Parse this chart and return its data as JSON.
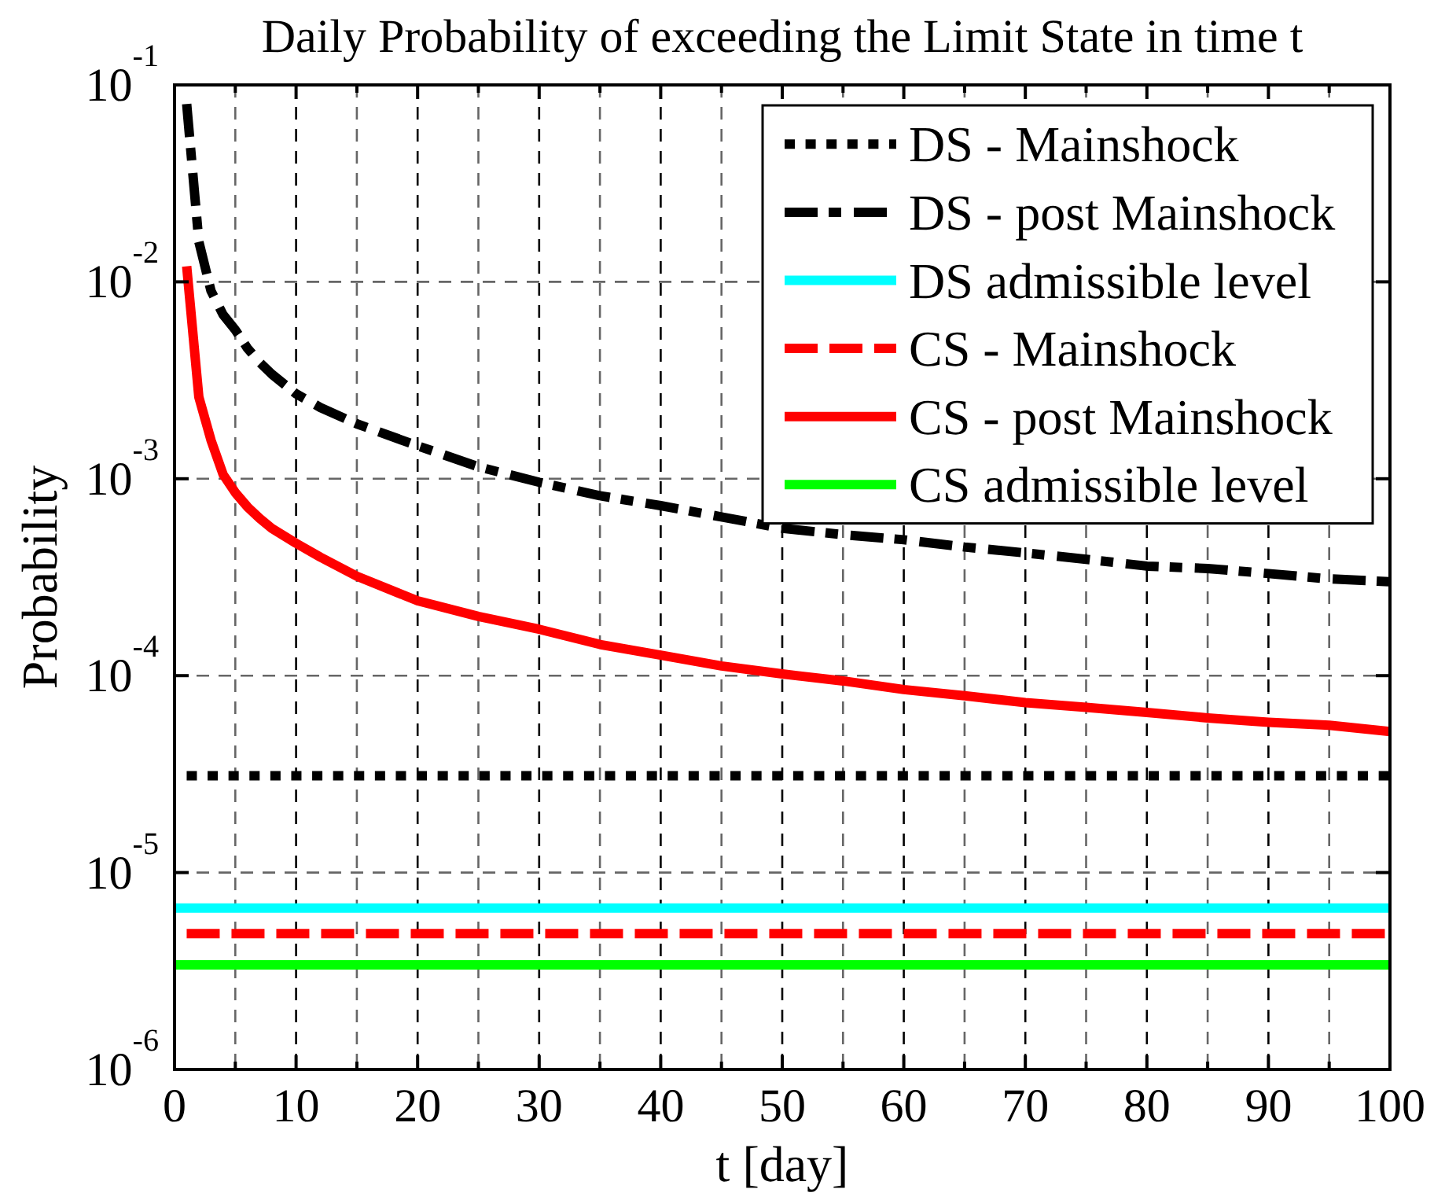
{
  "chart_data": {
    "type": "line",
    "title": "Daily Probability of exceeding the Limit State in time t",
    "xlabel": "t [day]",
    "ylabel": "Probability",
    "xlim": [
      0,
      100
    ],
    "xticks": [
      0,
      {
        "value": 5,
        "label": null
      },
      10,
      {
        "value": 15,
        "label": null
      },
      20,
      {
        "value": 25,
        "label": null
      },
      30,
      {
        "value": 35,
        "label": null
      },
      40,
      {
        "value": 45,
        "label": null
      },
      50,
      {
        "value": 55,
        "label": null
      },
      60,
      {
        "value": 65,
        "label": null
      },
      70,
      {
        "value": 75,
        "label": null
      },
      80,
      {
        "value": 85,
        "label": null
      },
      90,
      {
        "value": 95,
        "label": null
      },
      100
    ],
    "ylim": [
      1e-06,
      0.1
    ],
    "yticks": [
      {
        "value": 1e-06,
        "label": "10$^{-6}$"
      },
      {
        "value": 1e-05,
        "label": "10$^{-5}$"
      },
      {
        "value": 0.0001,
        "label": "10$^{-4}$"
      },
      {
        "value": 0.001,
        "label": "10$^{-3}$"
      },
      {
        "value": 0.01,
        "label": "10$^{-2}$"
      },
      {
        "value": 0.1,
        "label": "10$^{-1}$"
      }
    ],
    "log": "y",
    "grid": true,
    "legend": "top right",
    "series": [
      {
        "name": "DS - Mainshock",
        "color": "#000000",
        "line_style": "dotted",
        "x": [
          1,
          100
        ],
        "values": [
          3.1e-05,
          3.1e-05
        ]
      },
      {
        "name": "DS - post Mainshock",
        "color": "#000000",
        "line_style": "dashdot",
        "x": [
          1,
          2,
          3,
          4,
          5,
          6,
          7,
          8,
          10,
          12,
          15,
          20,
          25,
          30,
          35,
          40,
          45,
          50,
          55,
          60,
          65,
          70,
          75,
          80,
          85,
          90,
          95,
          100
        ],
        "values": [
          0.08,
          0.016,
          0.009,
          0.0068,
          0.0057,
          0.0046,
          0.0039,
          0.0034,
          0.0027,
          0.0023,
          0.0019,
          0.00147,
          0.00115,
          0.00096,
          0.00082,
          0.00073,
          0.00064,
          0.00056,
          0.00052,
          0.00049,
          0.00045,
          0.00042,
          0.00039,
          0.00036,
          0.00035,
          0.00033,
          0.00031,
          0.0003
        ]
      },
      {
        "name": "DS admissible level",
        "color": "#00ffff",
        "line_style": "solid",
        "x": [
          0,
          100
        ],
        "values": [
          6.6e-06,
          6.6e-06
        ]
      },
      {
        "name": "CS - Mainshock",
        "color": "#ff0000",
        "line_style": "dashed",
        "x": [
          1,
          100
        ],
        "values": [
          4.9e-06,
          4.9e-06
        ]
      },
      {
        "name": "CS - post Mainshock",
        "color": "#ff0000",
        "line_style": "solid",
        "x": [
          1,
          2,
          3,
          4,
          5,
          6,
          7,
          8,
          10,
          12,
          15,
          20,
          25,
          30,
          35,
          40,
          45,
          50,
          55,
          60,
          65,
          70,
          75,
          80,
          85,
          90,
          95,
          100
        ],
        "values": [
          0.012,
          0.0026,
          0.00157,
          0.00105,
          0.00085,
          0.00072,
          0.00063,
          0.00056,
          0.00047,
          0.0004,
          0.00032,
          0.00024,
          0.0002,
          0.000172,
          0.000144,
          0.000127,
          0.000112,
          0.000102,
          9.4e-05,
          8.5e-05,
          7.9e-05,
          7.3e-05,
          6.9e-05,
          6.5e-05,
          6.1e-05,
          5.8e-05,
          5.6e-05,
          5.2e-05
        ]
      },
      {
        "name": "CS admissible level",
        "color": "#00ff00",
        "line_style": "solid",
        "x": [
          0,
          100
        ],
        "values": [
          3.4e-06,
          3.4e-06
        ]
      }
    ]
  }
}
